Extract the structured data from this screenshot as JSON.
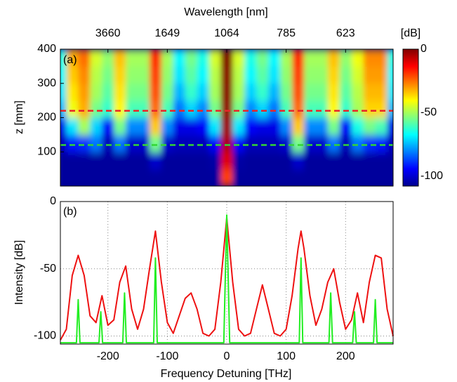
{
  "chart_data": [
    {
      "type": "heatmap",
      "label": "(a)",
      "x2label": "Wavelength [nm]",
      "ylabel": "z [mm]",
      "xlim": [
        -280,
        280
      ],
      "x2ticks": [
        {
          "value": -200,
          "label": "3660"
        },
        {
          "value": -100,
          "label": "1649"
        },
        {
          "value": 0,
          "label": "1064"
        },
        {
          "value": 100,
          "label": "785"
        },
        {
          "value": 200,
          "label": "623"
        }
      ],
      "ylim": [
        0,
        400
      ],
      "yticks": [
        100,
        200,
        300,
        400
      ],
      "x": [
        -280,
        -260,
        -240,
        -220,
        -200,
        -180,
        -160,
        -140,
        -120,
        -100,
        -80,
        -60,
        -40,
        -20,
        0,
        20,
        40,
        60,
        80,
        100,
        120,
        140,
        160,
        180,
        200,
        220,
        240,
        260,
        280
      ],
      "y": [
        25,
        75,
        125,
        175,
        225,
        275,
        325,
        375
      ],
      "matrix": [
        [
          -105,
          -105,
          -105,
          -105,
          -105,
          -105,
          -105,
          -105,
          -105,
          -105,
          -105,
          -105,
          -105,
          -105,
          -20,
          -105,
          -105,
          -105,
          -105,
          -105,
          -105,
          -105,
          -105,
          -105,
          -105,
          -105,
          -105,
          -105,
          -105
        ],
        [
          -105,
          -105,
          -105,
          -105,
          -105,
          -105,
          -105,
          -105,
          -100,
          -105,
          -105,
          -105,
          -105,
          -104,
          -10,
          -104,
          -105,
          -105,
          -105,
          -105,
          -100,
          -105,
          -105,
          -105,
          -105,
          -105,
          -105,
          -105,
          -105
        ],
        [
          -102,
          -92,
          -90,
          -82,
          -102,
          -82,
          -100,
          -100,
          -55,
          -100,
          -102,
          -102,
          -102,
          -95,
          -5,
          -95,
          -102,
          -102,
          -102,
          -100,
          -55,
          -100,
          -100,
          -82,
          -102,
          -82,
          -90,
          -92,
          -102
        ],
        [
          -97,
          -70,
          -50,
          -72,
          -95,
          -55,
          -80,
          -80,
          -35,
          -80,
          -97,
          -97,
          -95,
          -70,
          -3,
          -70,
          -95,
          -97,
          -97,
          -80,
          -35,
          -80,
          -80,
          -55,
          -95,
          -65,
          -55,
          -60,
          -97
        ],
        [
          -75,
          -42,
          -32,
          -55,
          -62,
          -40,
          -60,
          -60,
          -25,
          -60,
          -82,
          -72,
          -80,
          -55,
          -2,
          -55,
          -80,
          -72,
          -82,
          -60,
          -25,
          -60,
          -60,
          -40,
          -62,
          -50,
          -36,
          -36,
          -75
        ],
        [
          -70,
          -38,
          -30,
          -50,
          -58,
          -38,
          -55,
          -55,
          -22,
          -55,
          -75,
          -62,
          -72,
          -50,
          -1,
          -50,
          -72,
          -62,
          -75,
          -55,
          -22,
          -55,
          -55,
          -38,
          -58,
          -48,
          -33,
          -33,
          -70
        ],
        [
          -68,
          -35,
          -28,
          -48,
          -55,
          -36,
          -52,
          -52,
          -20,
          -52,
          -70,
          -58,
          -68,
          -48,
          -1,
          -48,
          -68,
          -58,
          -70,
          -52,
          -20,
          -52,
          -52,
          -36,
          -55,
          -45,
          -30,
          -30,
          -68
        ],
        [
          -65,
          -32,
          -25,
          -45,
          -52,
          -34,
          -50,
          -50,
          -18,
          -50,
          -68,
          -55,
          -65,
          -45,
          0,
          -45,
          -65,
          -55,
          -68,
          -50,
          -18,
          -50,
          -50,
          -34,
          -52,
          -42,
          -28,
          -28,
          -65
        ]
      ],
      "clim": [
        -108,
        0
      ],
      "cticks": [
        0,
        -50,
        -100
      ],
      "colorbar_label": "[dB]",
      "hlines": [
        {
          "value": 220,
          "color": "#e8262a"
        },
        {
          "value": 120,
          "color": "#33d633"
        }
      ]
    },
    {
      "type": "line",
      "label": "(b)",
      "xlabel": "Frequency Detuning [THz]",
      "ylabel": "Intensity [dB]",
      "xlim": [
        -280,
        280
      ],
      "xticks": [
        -200,
        -100,
        0,
        100,
        200
      ],
      "ylim": [
        -106,
        0
      ],
      "yticks": [
        0,
        -50,
        -100
      ],
      "grid": true,
      "series": [
        {
          "color": "#ee1111",
          "x": [
            -280,
            -270,
            -260,
            -250,
            -240,
            -230,
            -220,
            -210,
            -200,
            -190,
            -180,
            -170,
            -160,
            -150,
            -140,
            -130,
            -120,
            -110,
            -100,
            -90,
            -80,
            -70,
            -60,
            -50,
            -40,
            -30,
            -20,
            -10,
            0,
            10,
            20,
            30,
            40,
            50,
            60,
            70,
            80,
            90,
            100,
            110,
            120,
            125,
            130,
            140,
            150,
            160,
            170,
            180,
            190,
            200,
            210,
            220,
            230,
            240,
            250,
            260,
            270,
            280
          ],
          "values": [
            -103,
            -95,
            -55,
            -40,
            -55,
            -85,
            -90,
            -70,
            -92,
            -88,
            -60,
            -48,
            -80,
            -95,
            -80,
            -50,
            -22,
            -60,
            -90,
            -98,
            -85,
            -72,
            -68,
            -80,
            -98,
            -100,
            -95,
            -60,
            -12,
            -60,
            -95,
            -100,
            -98,
            -80,
            -62,
            -80,
            -98,
            -100,
            -95,
            -70,
            -35,
            -22,
            -35,
            -70,
            -92,
            -80,
            -60,
            -50,
            -75,
            -95,
            -88,
            -68,
            -90,
            -60,
            -40,
            -42,
            -80,
            -100
          ]
        },
        {
          "color": "#22ee22",
          "x": [
            -280,
            -253,
            -250,
            -247,
            -215,
            -212,
            -209,
            -175,
            -172,
            -169,
            -123,
            -120,
            -117,
            -5,
            0,
            5,
            122,
            125,
            128,
            172,
            175,
            178,
            212,
            215,
            218,
            247,
            250,
            253,
            280
          ],
          "values": [
            -105,
            -105,
            -73,
            -105,
            -105,
            -82,
            -105,
            -105,
            -68,
            -105,
            -105,
            -42,
            -105,
            -105,
            -10,
            -105,
            -105,
            -42,
            -105,
            -105,
            -68,
            -105,
            -105,
            -82,
            -105,
            -105,
            -73,
            -105,
            -105
          ]
        }
      ]
    }
  ]
}
